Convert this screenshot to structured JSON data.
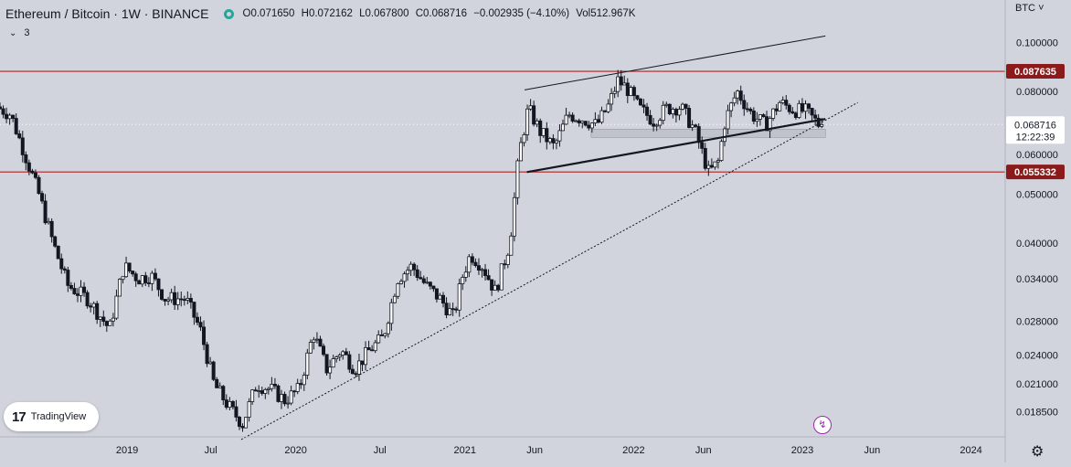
{
  "header": {
    "symbol": "Ethereum / Bitcoin · 1W · BINANCE",
    "open": "O0.071650",
    "high": "H0.072162",
    "low": "L0.067800",
    "close": "C0.068716",
    "change": "−0.002935 (−4.10%)",
    "volume": "Vol512.967K",
    "indicator_count": "3"
  },
  "currency_button": "BTC",
  "logo_text": "TradingView",
  "colors": {
    "background": "#d1d4dc",
    "candle": "#131722",
    "level_line": "#b22222",
    "level_badge": "#8b1a1a"
  },
  "chart_data": {
    "type": "candlestick",
    "title": "",
    "xlabel": "",
    "ylabel": "",
    "y_scale": "log",
    "ylim": [
      0.0165,
      0.108
    ],
    "xlim": [
      "2018-04-01",
      "2024-03-15"
    ],
    "x_ticks": [
      {
        "label": "2019",
        "date": "2019-01-01"
      },
      {
        "label": "Jul",
        "date": "2019-07-01"
      },
      {
        "label": "2020",
        "date": "2020-01-01"
      },
      {
        "label": "Jul",
        "date": "2020-07-01"
      },
      {
        "label": "2021",
        "date": "2021-01-01"
      },
      {
        "label": "Jun",
        "date": "2021-06-01"
      },
      {
        "label": "2022",
        "date": "2022-01-01"
      },
      {
        "label": "Jun",
        "date": "2022-06-01"
      },
      {
        "label": "2023",
        "date": "2023-01-01"
      },
      {
        "label": "Jun",
        "date": "2023-06-01"
      },
      {
        "label": "2024",
        "date": "2024-01-01"
      }
    ],
    "y_ticks": [
      {
        "label": "0.100000",
        "value": 0.1
      },
      {
        "label": "0.080000",
        "value": 0.08
      },
      {
        "label": "0.060000",
        "value": 0.06
      },
      {
        "label": "0.050000",
        "value": 0.05
      },
      {
        "label": "0.040000",
        "value": 0.04
      },
      {
        "label": "0.034000",
        "value": 0.034
      },
      {
        "label": "0.028000",
        "value": 0.028
      },
      {
        "label": "0.024000",
        "value": 0.024
      },
      {
        "label": "0.021000",
        "value": 0.021
      },
      {
        "label": "0.018500",
        "value": 0.0185
      }
    ],
    "price_badges": [
      {
        "label": "0.087635",
        "value": 0.087635,
        "style": "level"
      },
      {
        "label": "0.068716",
        "sub": "12:22:39",
        "value": 0.068716,
        "style": "current"
      },
      {
        "label": "0.055332",
        "value": 0.055332,
        "style": "level"
      }
    ],
    "horizontal_levels": [
      0.087635,
      0.055332
    ],
    "trendlines": [
      {
        "from": [
          "2021-05-10",
          0.0805
        ],
        "to": [
          "2023-02-20",
          0.103
        ],
        "style": "thin"
      },
      {
        "from": [
          "2021-05-15",
          0.0553
        ],
        "to": [
          "2023-02-20",
          0.0705
        ],
        "style": "bold"
      },
      {
        "from": [
          "2019-09-05",
          0.0163
        ],
        "to": [
          "2023-05-01",
          0.076
        ],
        "style": "dotted"
      }
    ],
    "zones": [
      {
        "from": "2021-10-01",
        "to": "2023-02-20",
        "low": 0.0648,
        "high": 0.0673
      }
    ],
    "anchors": [
      [
        "2018-04-01",
        0.0745
      ],
      [
        "2018-05-01",
        0.072
      ],
      [
        "2018-06-01",
        0.06
      ],
      [
        "2018-07-01",
        0.05
      ],
      [
        "2018-08-01",
        0.04
      ],
      [
        "2018-09-01",
        0.033
      ],
      [
        "2018-10-15",
        0.031
      ],
      [
        "2018-12-01",
        0.027
      ],
      [
        "2019-01-01",
        0.036
      ],
      [
        "2019-02-01",
        0.034
      ],
      [
        "2019-03-01",
        0.0345
      ],
      [
        "2019-04-01",
        0.031
      ],
      [
        "2019-05-15",
        0.031
      ],
      [
        "2019-06-15",
        0.027
      ],
      [
        "2019-07-15",
        0.021
      ],
      [
        "2019-08-15",
        0.019
      ],
      [
        "2019-09-15",
        0.0175
      ],
      [
        "2019-10-15",
        0.021
      ],
      [
        "2019-11-15",
        0.0205
      ],
      [
        "2019-12-15",
        0.0195
      ],
      [
        "2020-01-15",
        0.0205
      ],
      [
        "2020-02-15",
        0.0265
      ],
      [
        "2020-03-15",
        0.0225
      ],
      [
        "2020-04-15",
        0.0245
      ],
      [
        "2020-05-15",
        0.0225
      ],
      [
        "2020-06-15",
        0.0245
      ],
      [
        "2020-07-15",
        0.026
      ],
      [
        "2020-08-15",
        0.034
      ],
      [
        "2020-09-15",
        0.036
      ],
      [
        "2020-10-15",
        0.033
      ],
      [
        "2020-11-15",
        0.031
      ],
      [
        "2020-12-15",
        0.0285
      ],
      [
        "2021-01-01",
        0.034
      ],
      [
        "2021-01-20",
        0.038
      ],
      [
        "2021-02-15",
        0.036
      ],
      [
        "2021-03-15",
        0.032
      ],
      [
        "2021-04-15",
        0.04
      ],
      [
        "2021-05-05",
        0.06
      ],
      [
        "2021-05-25",
        0.074
      ],
      [
        "2021-06-20",
        0.0665
      ],
      [
        "2021-07-20",
        0.062
      ],
      [
        "2021-08-20",
        0.072
      ],
      [
        "2021-09-20",
        0.0705
      ],
      [
        "2021-10-20",
        0.0685
      ],
      [
        "2021-11-15",
        0.075
      ],
      [
        "2021-12-05",
        0.084
      ],
      [
        "2021-12-25",
        0.081
      ],
      [
        "2022-01-20",
        0.074
      ],
      [
        "2022-02-20",
        0.07
      ],
      [
        "2022-03-20",
        0.074
      ],
      [
        "2022-04-20",
        0.0745
      ],
      [
        "2022-05-20",
        0.067
      ],
      [
        "2022-06-20",
        0.055
      ],
      [
        "2022-07-10",
        0.058
      ],
      [
        "2022-07-25",
        0.07
      ],
      [
        "2022-08-20",
        0.08
      ],
      [
        "2022-09-20",
        0.072
      ],
      [
        "2022-10-20",
        0.0685
      ],
      [
        "2022-11-20",
        0.076
      ],
      [
        "2022-12-20",
        0.0735
      ],
      [
        "2023-01-15",
        0.073
      ],
      [
        "2023-02-13",
        0.068716
      ]
    ]
  }
}
